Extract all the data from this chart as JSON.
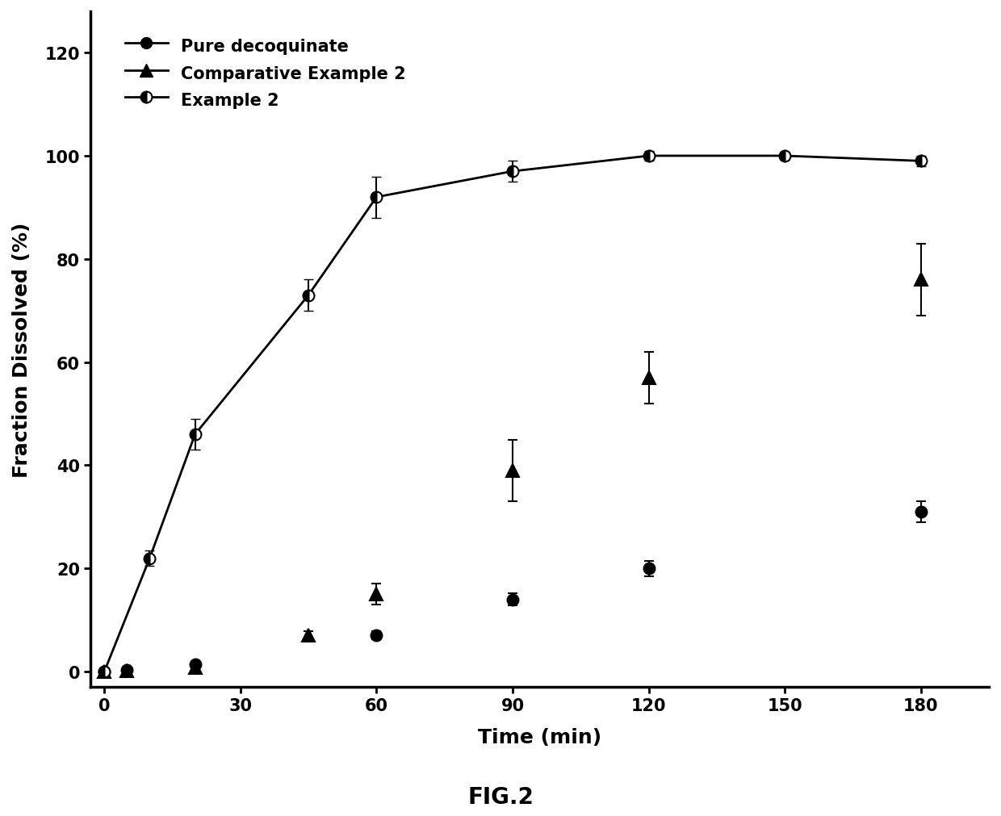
{
  "title": "FIG.2",
  "xlabel": "Time (min)",
  "ylabel": "Fraction Dissolved (%)",
  "xlim": [
    -3,
    195
  ],
  "ylim": [
    -3,
    128
  ],
  "xticks": [
    0,
    30,
    60,
    90,
    120,
    150,
    180
  ],
  "yticks": [
    0,
    20,
    40,
    60,
    80,
    100,
    120
  ],
  "series": [
    {
      "label": "Pure decoquinate",
      "x": [
        0,
        5,
        20,
        60,
        90,
        120,
        180
      ],
      "y": [
        0,
        0.3,
        1.5,
        7,
        14,
        20,
        31
      ],
      "yerr": [
        0,
        0.2,
        0.3,
        0.8,
        1.2,
        1.5,
        2.0
      ],
      "marker": "o",
      "markersize": 10,
      "color": "#000000",
      "half_filled": false,
      "linewidth": 2.0
    },
    {
      "label": "Comparative Example 2",
      "x": [
        0,
        5,
        20,
        45,
        60,
        90,
        120,
        180
      ],
      "y": [
        0,
        0.2,
        0.8,
        7,
        15,
        39,
        57,
        76
      ],
      "yerr": [
        0,
        0.1,
        0.3,
        0.8,
        2.0,
        6.0,
        5.0,
        7.0
      ],
      "marker": "^",
      "markersize": 11,
      "color": "#000000",
      "half_filled": false,
      "linewidth": 2.0
    },
    {
      "label": "Example 2",
      "x": [
        0,
        10,
        20,
        45,
        60,
        90,
        120,
        150,
        180
      ],
      "y": [
        0,
        22,
        46,
        73,
        92,
        97,
        100,
        100,
        99
      ],
      "yerr": [
        0,
        1.5,
        3.0,
        3.0,
        4.0,
        2.0,
        1.0,
        0.8,
        1.0
      ],
      "marker": "o",
      "markersize": 10,
      "color": "#000000",
      "half_filled": true,
      "linewidth": 2.0
    }
  ],
  "legend_fontsize": 15,
  "axis_fontsize": 18,
  "tick_fontsize": 15,
  "fig_caption_fontsize": 20,
  "background_color": "#ffffff",
  "capsize": 4,
  "elinewidth": 1.5
}
